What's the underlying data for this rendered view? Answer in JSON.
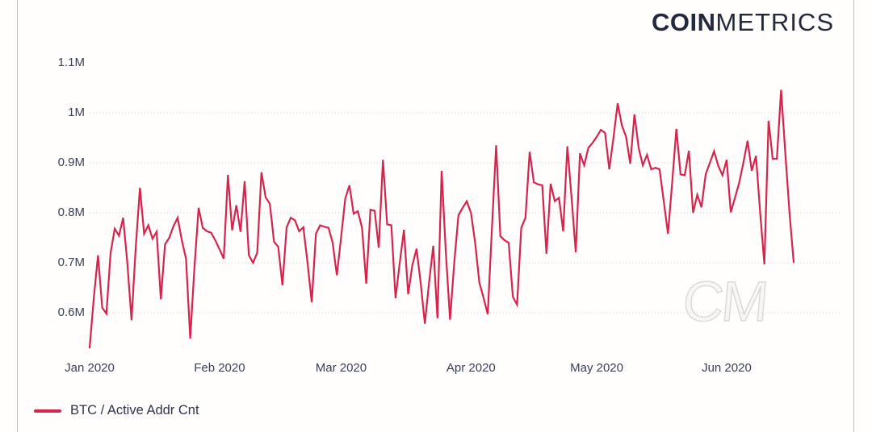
{
  "logo": {
    "bold": "COIN",
    "light": "METRICS"
  },
  "watermark": "CM",
  "legend": {
    "label": "BTC / Active Addr Cnt",
    "color": "#d5254e"
  },
  "colors": {
    "line": "#d5254e",
    "grid": "#cccccc",
    "axis_text": "#3a4155",
    "logo_text": "#232a3e",
    "frame": "#b8bcc4"
  },
  "chart_data": {
    "type": "line",
    "title": "",
    "xlabel": "",
    "ylabel": "",
    "frequency": "daily",
    "start_date": "2020-01-01",
    "x_tick_labels": [
      "Jan 2020",
      "Feb 2020",
      "Mar 2020",
      "Apr 2020",
      "May 2020",
      "Jun 2020"
    ],
    "x_tick_days": [
      0,
      31,
      60,
      91,
      121,
      152
    ],
    "y_tick_labels": [
      "1.1M",
      "1M",
      "0.9M",
      "0.8M",
      "0.7M",
      "0.6M"
    ],
    "y_ticks": [
      1.1,
      1.0,
      0.9,
      0.8,
      0.7,
      0.6
    ],
    "grid_ticks": [
      1.0,
      0.9,
      0.8,
      0.7,
      0.6
    ],
    "unit": "M addresses",
    "ylim": [
      0.52,
      1.12
    ],
    "grid": "dotted-horizontal",
    "legend_position": "bottom-left",
    "series": [
      {
        "name": "BTC / Active Addr Cnt",
        "color": "#d5254e",
        "values": [
          0.53,
          0.63,
          0.715,
          0.61,
          0.598,
          0.72,
          0.768,
          0.754,
          0.79,
          0.7,
          0.585,
          0.73,
          0.85,
          0.758,
          0.775,
          0.748,
          0.762,
          0.627,
          0.737,
          0.75,
          0.773,
          0.79,
          0.745,
          0.708,
          0.548,
          0.69,
          0.81,
          0.77,
          0.763,
          0.76,
          0.745,
          0.727,
          0.708,
          0.876,
          0.765,
          0.815,
          0.762,
          0.863,
          0.715,
          0.7,
          0.72,
          0.881,
          0.831,
          0.818,
          0.742,
          0.732,
          0.655,
          0.771,
          0.79,
          0.785,
          0.763,
          0.771,
          0.7,
          0.621,
          0.758,
          0.775,
          0.772,
          0.77,
          0.74,
          0.675,
          0.75,
          0.828,
          0.855,
          0.798,
          0.803,
          0.77,
          0.658,
          0.806,
          0.804,
          0.73,
          0.906,
          0.777,
          0.775,
          0.629,
          0.7,
          0.766,
          0.637,
          0.695,
          0.728,
          0.66,
          0.578,
          0.66,
          0.734,
          0.589,
          0.884,
          0.72,
          0.586,
          0.7,
          0.795,
          0.81,
          0.823,
          0.8,
          0.74,
          0.66,
          0.63,
          0.597,
          0.77,
          0.935,
          0.753,
          0.745,
          0.74,
          0.632,
          0.616,
          0.77,
          0.79,
          0.922,
          0.861,
          0.857,
          0.855,
          0.718,
          0.858,
          0.823,
          0.83,
          0.763,
          0.933,
          0.83,
          0.721,
          0.919,
          0.895,
          0.93,
          0.94,
          0.952,
          0.966,
          0.96,
          0.887,
          0.95,
          1.019,
          0.975,
          0.952,
          0.898,
          0.997,
          0.93,
          0.895,
          0.916,
          0.887,
          0.89,
          0.887,
          0.823,
          0.758,
          0.86,
          0.968,
          0.877,
          0.875,
          0.924,
          0.8,
          0.836,
          0.811,
          0.877,
          0.9,
          0.923,
          0.894,
          0.875,
          0.906,
          0.801,
          0.83,
          0.86,
          0.9,
          0.944,
          0.884,
          0.914,
          0.8,
          0.697,
          0.984,
          0.908,
          0.908,
          1.046,
          0.92,
          0.801,
          0.701
        ]
      }
    ]
  }
}
